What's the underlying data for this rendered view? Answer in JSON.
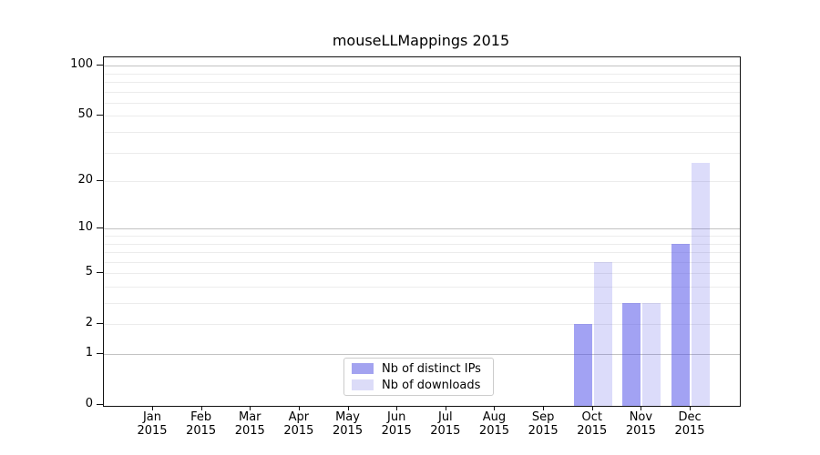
{
  "chart_data": {
    "type": "bar",
    "title": "mouseLLMappings 2015",
    "categories": [
      "Jan",
      "Feb",
      "Mar",
      "Apr",
      "May",
      "Jun",
      "Jul",
      "Aug",
      "Sep",
      "Oct",
      "Nov",
      "Dec"
    ],
    "category_year": "2015",
    "series": [
      {
        "name": "Nb of distinct IPs",
        "color": "#a3a3f0",
        "fill": "rgba(80,80,232,0.53)",
        "values": [
          0,
          0,
          0,
          0,
          0,
          0,
          0,
          0,
          0,
          2,
          3,
          8
        ]
      },
      {
        "name": "Nb of downloads",
        "color": "#dcdcf8",
        "fill": "rgba(80,80,232,0.20)",
        "values": [
          0,
          0,
          0,
          0,
          0,
          0,
          0,
          0,
          0,
          6,
          3,
          26
        ]
      }
    ],
    "yscale": "log1p",
    "ylim": [
      0,
      110
    ],
    "ytick_values": [
      0,
      1,
      2,
      5,
      10,
      20,
      50,
      100
    ],
    "major_gridline_values": [
      1,
      10,
      100
    ],
    "minor_gridline_values": [
      2,
      3,
      4,
      5,
      6,
      7,
      8,
      9,
      20,
      30,
      40,
      50,
      60,
      70,
      80,
      90
    ],
    "grid": true,
    "legend_position": "inside-bottom-center"
  },
  "colors": {
    "background": "#ffffff",
    "axis": "#111111",
    "major_grid": "#c2c2c2",
    "minor_grid": "#ececec",
    "text": "#000000",
    "legend_border": "#cccccc"
  }
}
